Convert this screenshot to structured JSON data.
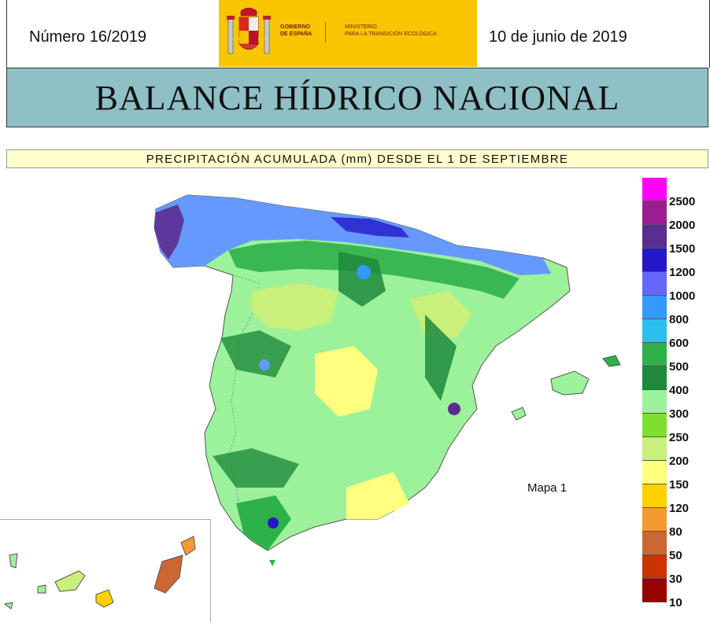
{
  "header": {
    "issue_number": "Número 16/2019",
    "date": "10 de junio de 2019",
    "logo_left_line1": "GOBIERNO",
    "logo_left_line2": "DE ESPAÑA",
    "logo_right_line1": "MINISTERIO",
    "logo_right_line2": "PARA LA TRANSICIÓN ECOLÓGICA"
  },
  "title": "BALANCE HÍDRICO NACIONAL",
  "subtitle": "PRECIPITACIÓN ACUMULADA (mm) DESDE EL 1 DE SEPTIEMBRE",
  "map": {
    "label": "Mapa 1"
  },
  "legend": {
    "items": [
      {
        "label": "2500",
        "color": "#ff00ff"
      },
      {
        "label": "2000",
        "color": "#9b1d8f"
      },
      {
        "label": "1500",
        "color": "#5b2d91"
      },
      {
        "label": "1200",
        "color": "#2418c8"
      },
      {
        "label": "1000",
        "color": "#6666ff"
      },
      {
        "label": "800",
        "color": "#3399ff"
      },
      {
        "label": "600",
        "color": "#29c0ee"
      },
      {
        "label": "500",
        "color": "#2eb04a"
      },
      {
        "label": "400",
        "color": "#1f8a3c"
      },
      {
        "label": "300",
        "color": "#9bf29b"
      },
      {
        "label": "250",
        "color": "#7de02e"
      },
      {
        "label": "200",
        "color": "#c8f07a"
      },
      {
        "label": "150",
        "color": "#ffff80"
      },
      {
        "label": "120",
        "color": "#ffd100"
      },
      {
        "label": "80",
        "color": "#f59a32"
      },
      {
        "label": "50",
        "color": "#cc6633"
      },
      {
        "label": "30",
        "color": "#cc3300"
      },
      {
        "label": "10",
        "color": "#990000"
      }
    ]
  }
}
